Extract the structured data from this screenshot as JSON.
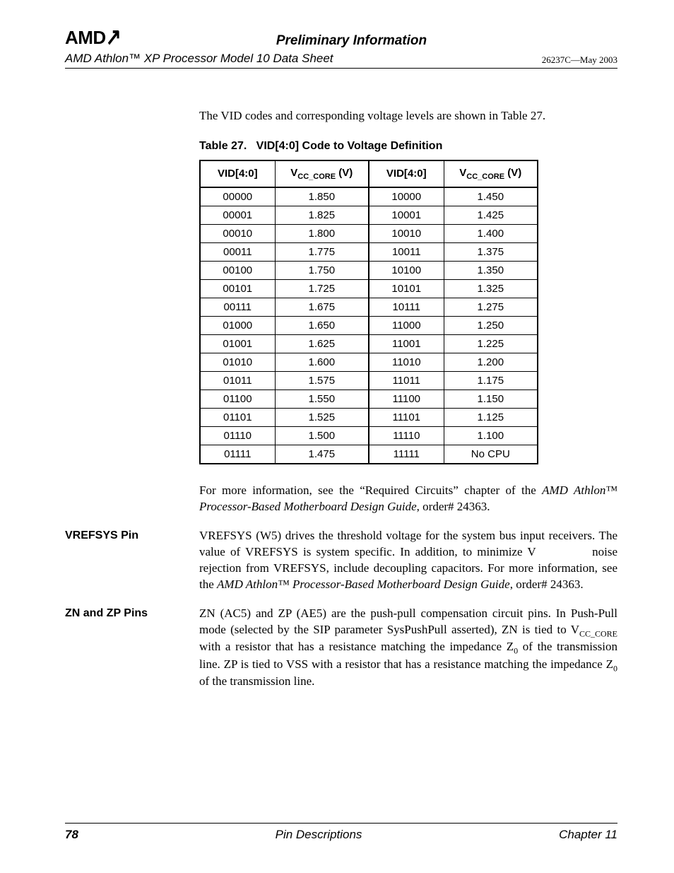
{
  "header": {
    "logo": "AMD",
    "preliminary": "Preliminary Information",
    "doc_title": "AMD Athlon™ XP Processor Model 10 Data Sheet",
    "revision": "26237C—May 2003"
  },
  "intro_text": "The VID codes and corresponding voltage levels are shown in Table 27.",
  "table": {
    "caption_prefix": "Table 27.",
    "caption_title": "VID[4:0] Code to Voltage Definition",
    "header_vid": "VID[4:0]",
    "header_vcc_prefix": "V",
    "header_vcc_sub": "CC_CORE",
    "header_vcc_suffix": " (V)",
    "rows": [
      {
        "vid_a": "00000",
        "v_a": "1.850",
        "vid_b": "10000",
        "v_b": "1.450"
      },
      {
        "vid_a": "00001",
        "v_a": "1.825",
        "vid_b": "10001",
        "v_b": "1.425"
      },
      {
        "vid_a": "00010",
        "v_a": "1.800",
        "vid_b": "10010",
        "v_b": "1.400"
      },
      {
        "vid_a": "00011",
        "v_a": "1.775",
        "vid_b": "10011",
        "v_b": "1.375"
      },
      {
        "vid_a": "00100",
        "v_a": "1.750",
        "vid_b": "10100",
        "v_b": "1.350"
      },
      {
        "vid_a": "00101",
        "v_a": "1.725",
        "vid_b": "10101",
        "v_b": "1.325"
      },
      {
        "vid_a": "00111",
        "v_a": "1.675",
        "vid_b": "10111",
        "v_b": "1.275"
      },
      {
        "vid_a": "01000",
        "v_a": "1.650",
        "vid_b": "11000",
        "v_b": "1.250"
      },
      {
        "vid_a": "01001",
        "v_a": "1.625",
        "vid_b": "11001",
        "v_b": "1.225"
      },
      {
        "vid_a": "01010",
        "v_a": "1.600",
        "vid_b": "11010",
        "v_b": "1.200"
      },
      {
        "vid_a": "01011",
        "v_a": "1.575",
        "vid_b": "11011",
        "v_b": "1.175"
      },
      {
        "vid_a": "01100",
        "v_a": "1.550",
        "vid_b": "11100",
        "v_b": "1.150"
      },
      {
        "vid_a": "01101",
        "v_a": "1.525",
        "vid_b": "11101",
        "v_b": "1.125"
      },
      {
        "vid_a": "01110",
        "v_a": "1.500",
        "vid_b": "11110",
        "v_b": "1.100"
      },
      {
        "vid_a": "01111",
        "v_a": "1.475",
        "vid_b": "11111",
        "v_b": "No CPU"
      }
    ]
  },
  "after_table_p1_a": "For more information, see the “Required Circuits” chapter of the ",
  "after_table_p1_ital": "AMD Athlon™ Processor-Based Motherboard Design Guide",
  "after_table_p1_b": ", order# 24363.",
  "vrefsys": {
    "label": "VREFSYS Pin",
    "t1": "VREFSYS (W5) drives the threshold voltage for the system bus input receivers. The value of VREFSYS is system specific. In addition, to minimize V           noise rejection from VREFSYS, include decoupling capacitors. For more information, see the ",
    "ital": "AMD Athlon™ Processor-Based Motherboard Design Guide",
    "t2": ", order# 24363."
  },
  "znzp": {
    "label": "ZN and ZP Pins",
    "t1": "ZN (AC5) and ZP (AE5) are the push-pull compensation circuit pins. In Push-Pull mode (selected by the SIP parameter SysPushPull asserted), ZN is tied to V",
    "sub1": "CC_CORE",
    "t2": " with a resistor that has a resistance matching the impedance Z",
    "sub2": "0",
    "t3": " of the transmission line. ZP is tied to VSS with a resistor that has a resistance matching the impedance Z",
    "sub3": "0",
    "t4": " of the transmission line."
  },
  "footer": {
    "page": "78",
    "center": "Pin Descriptions",
    "chapter": "Chapter 11"
  }
}
